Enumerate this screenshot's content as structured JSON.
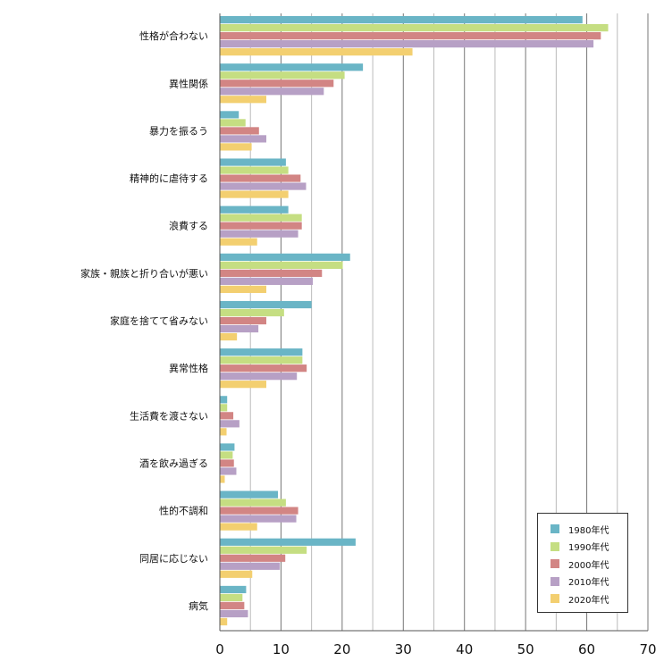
{
  "chart_data": {
    "type": "bar",
    "orientation": "horizontal",
    "categories": [
      "性格が合わない",
      "異性関係",
      "暴力を振るう",
      "精神的に虐待する",
      "浪費する",
      "家族・親族と折り合いが悪い",
      "家庭を捨てて省みない",
      "異常性格",
      "生活費を渡さない",
      "酒を飲み過ぎる",
      "性的不調和",
      "同居に応じない",
      "病気"
    ],
    "series": [
      {
        "name": "1980年代",
        "color": "#6ab5c6",
        "values": [
          59.3,
          23.4,
          3.1,
          10.8,
          11.2,
          21.3,
          15.0,
          13.5,
          1.2,
          2.4,
          9.5,
          22.2,
          4.3
        ]
      },
      {
        "name": "1990年代",
        "color": "#c5de82",
        "values": [
          63.5,
          20.4,
          4.2,
          11.2,
          13.4,
          20.1,
          10.5,
          13.5,
          1.2,
          2.1,
          10.8,
          14.2,
          3.7
        ]
      },
      {
        "name": "2000年代",
        "color": "#d28584",
        "values": [
          62.3,
          18.6,
          6.4,
          13.2,
          13.4,
          16.7,
          7.6,
          14.2,
          2.2,
          2.3,
          12.8,
          10.7,
          4.0
        ]
      },
      {
        "name": "2010年代",
        "color": "#b7a0c5",
        "values": [
          61.1,
          17.0,
          7.6,
          14.1,
          12.8,
          15.2,
          6.3,
          12.6,
          3.2,
          2.7,
          12.5,
          9.8,
          4.6
        ]
      },
      {
        "name": "2020年代",
        "color": "#f3cf70",
        "values": [
          31.5,
          7.6,
          5.2,
          11.2,
          6.1,
          7.6,
          2.8,
          7.6,
          1.1,
          0.8,
          6.1,
          5.3,
          1.2
        ]
      }
    ],
    "xlim": [
      0,
      70
    ],
    "xticks": [
      0,
      10,
      20,
      30,
      40,
      50,
      60,
      70
    ],
    "grid": "vertical",
    "legend_position": "bottom-right"
  }
}
